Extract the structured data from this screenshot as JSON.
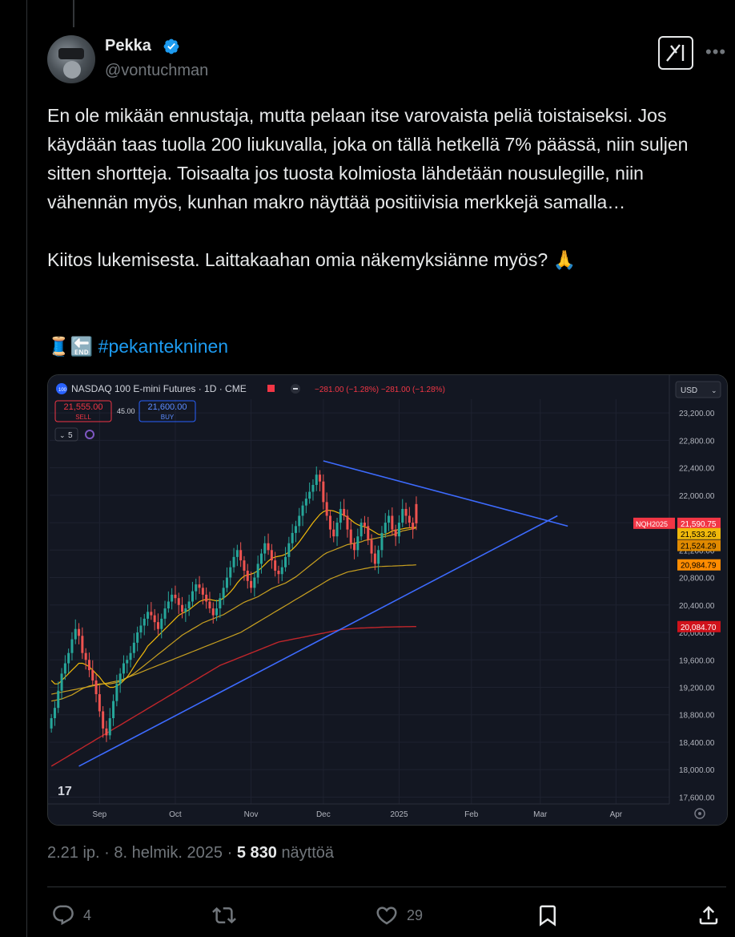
{
  "author": {
    "name": "Pekka",
    "handle": "@vontuchman"
  },
  "tweet": {
    "paragraphs": [
      "En ole mikään ennustaja, mutta pelaan itse varovaista peliä toistaiseksi. Jos käydään taas tuolla 200 liukuvalla, joka on tällä hetkellä 7% päässä, niin suljen sitten shortteja. Toisaalta jos tuosta kolmiosta lähdetään nousulegille, niin vähennän myös, kunhan makro näyttää positiivisia merkkejä samalla…",
      "Kiitos lukemisesta. Laittakaahan omia näkemyksiänne myös? 🙏"
    ],
    "emoji_prefix": "🧵🔚",
    "hashtag": "#pekantekninen"
  },
  "meta": {
    "time": "2.21 ip.",
    "date": "8. helmik. 2025",
    "views": "5 830",
    "views_label": "näyttöä"
  },
  "actions": {
    "replies": "4",
    "likes": "29"
  },
  "icons": [
    "verified-badge-icon",
    "grok-icon",
    "more-icon",
    "reply-icon",
    "retweet-icon",
    "like-icon",
    "bookmark-icon",
    "share-icon"
  ],
  "chart": {
    "symbol": "NASDAQ 100 E-mini Futures · 1D · CME",
    "change": "−281.00 (−1.28%)  −281.00 (−1.28%)",
    "sell_price": "21,555.00",
    "sell_label": "SELL",
    "spread": "45.00",
    "buy_price": "21,600.00",
    "buy_label": "BUY",
    "indicator_count": "5",
    "currency": "USD",
    "ticker_tag": "NQH2025",
    "price_labels": [
      "21,590.75",
      "21,533.26",
      "21,524.29",
      "20,984.79",
      "20,084.70"
    ],
    "logo": "17"
  },
  "chart_data": {
    "type": "candlestick",
    "y_ticks": [
      23200,
      22800,
      22400,
      22000,
      21600,
      21200,
      20800,
      20400,
      20000,
      19600,
      19200,
      18800,
      18400,
      18000,
      17600
    ],
    "y_tick_labels": [
      "23,200.00",
      "22,800.00",
      "22,400.00",
      "22,000.00",
      "21,600.00",
      "21,200.00",
      "20,800.00",
      "20,400.00",
      "20,000.00",
      "19,600.00",
      "19,200.00",
      "18,800.00",
      "18,400.00",
      "18,000.00",
      "17,600.00"
    ],
    "ylim": [
      17500,
      23400
    ],
    "x_labels": [
      "Sep",
      "Oct",
      "Nov",
      "Dec",
      "2025",
      "Feb",
      "Mar",
      "Apr"
    ],
    "x_label_index": [
      14,
      36,
      58,
      79,
      101,
      122,
      142,
      164
    ],
    "x_total": 180,
    "closes": [
      18750,
      18900,
      19150,
      19400,
      19550,
      19700,
      19900,
      20050,
      19950,
      19700,
      19600,
      19450,
      19300,
      19100,
      18850,
      18600,
      18500,
      18750,
      19000,
      19250,
      19400,
      19550,
      19600,
      19700,
      19850,
      20000,
      20100,
      20200,
      20300,
      20250,
      20150,
      20050,
      20200,
      20350,
      20450,
      20550,
      20500,
      20400,
      20300,
      20350,
      20450,
      20600,
      20700,
      20650,
      20550,
      20450,
      20350,
      20250,
      20350,
      20500,
      20650,
      20800,
      20950,
      21100,
      21200,
      21050,
      20900,
      20750,
      20650,
      20800,
      21000,
      21150,
      21300,
      21200,
      21050,
      20900,
      20850,
      20950,
      21100,
      21300,
      21450,
      21550,
      21700,
      21850,
      21950,
      22050,
      22150,
      22300,
      22200,
      21900,
      21700,
      21500,
      21400,
      21600,
      21800,
      21700,
      21500,
      21300,
      21200,
      21400,
      21600,
      21550,
      21350,
      21150,
      21000,
      21200,
      21450,
      21600,
      21700,
      21500,
      21400,
      21600,
      21800,
      21700,
      21600,
      21500,
      21590
    ],
    "opens": [
      18600,
      18750,
      18900,
      19150,
      19400,
      19550,
      19700,
      19900,
      20050,
      19950,
      19700,
      19600,
      19450,
      19300,
      19100,
      18850,
      18600,
      18500,
      18750,
      19000,
      19250,
      19400,
      19550,
      19600,
      19700,
      19850,
      20000,
      20100,
      20200,
      20300,
      20250,
      20150,
      20050,
      20200,
      20350,
      20450,
      20550,
      20500,
      20400,
      20300,
      20350,
      20450,
      20600,
      20700,
      20650,
      20550,
      20450,
      20350,
      20250,
      20350,
      20500,
      20650,
      20800,
      20950,
      21100,
      21200,
      21050,
      20900,
      20750,
      20650,
      20800,
      21000,
      21150,
      21300,
      21200,
      21050,
      20900,
      20850,
      20950,
      21100,
      21300,
      21450,
      21550,
      21700,
      21850,
      21950,
      22050,
      22150,
      22300,
      22200,
      21900,
      21700,
      21500,
      21400,
      21600,
      21800,
      21700,
      21500,
      21300,
      21200,
      21400,
      21600,
      21550,
      21350,
      21150,
      21000,
      21200,
      21450,
      21600,
      21700,
      21500,
      21400,
      21600,
      21800,
      21700,
      21600,
      21871
    ],
    "ma_fast": [
      19300,
      19250,
      19250,
      19300,
      19350,
      19400,
      19450,
      19500,
      19550,
      19550,
      19530,
      19500,
      19450,
      19400,
      19350,
      19280,
      19230,
      19200,
      19200,
      19220,
      19250,
      19300,
      19350,
      19420,
      19500,
      19580,
      19650,
      19720,
      19800,
      19850,
      19900,
      19950,
      20000,
      20050,
      20100,
      20150,
      20200,
      20250,
      20280,
      20300,
      20330,
      20370,
      20410,
      20450,
      20470,
      20480,
      20480,
      20470,
      20460,
      20470,
      20500,
      20540,
      20590,
      20650,
      20720,
      20780,
      20820,
      20840,
      20850,
      20870,
      20900,
      20940,
      20990,
      21040,
      21080,
      21100,
      21110,
      21120,
      21140,
      21170,
      21210,
      21260,
      21320,
      21390,
      21460,
      21530,
      21600,
      21660,
      21720,
      21760,
      21780,
      21780,
      21770,
      21750,
      21730,
      21710,
      21680,
      21640,
      21600,
      21570,
      21550,
      21540,
      21520,
      21490,
      21460,
      21430,
      21420,
      21430,
      21450,
      21480,
      21490,
      21500,
      21510,
      21520,
      21525,
      21528,
      21533
    ],
    "ma_mid": [
      19000,
      19010,
      19020,
      19030,
      19050,
      19070,
      19090,
      19120,
      19150,
      19180,
      19200,
      19220,
      19230,
      19240,
      19250,
      19250,
      19250,
      19250,
      19260,
      19270,
      19290,
      19310,
      19340,
      19370,
      19400,
      19440,
      19480,
      19520,
      19560,
      19600,
      19640,
      19680,
      19720,
      19760,
      19800,
      19840,
      19880,
      19920,
      19960,
      19990,
      20020,
      20050,
      20080,
      20110,
      20140,
      20160,
      20180,
      20200,
      20220,
      20240,
      20260,
      20290,
      20320,
      20350,
      20380,
      20410,
      20440,
      20460,
      20480,
      20500,
      20520,
      20550,
      20580,
      20610,
      20640,
      20660,
      20680,
      20700,
      20720,
      20750,
      20780,
      20810,
      20850,
      20890,
      20930,
      20970,
      21010,
      21050,
      21090,
      21130,
      21160,
      21180,
      21200,
      21220,
      21240,
      21260,
      21280,
      21290,
      21300,
      21310,
      21320,
      21340,
      21350,
      21360,
      21370,
      21380,
      21390,
      21400,
      21410,
      21420,
      21440,
      21460,
      21480,
      21490,
      21500,
      21510,
      21524
    ],
    "ma_slow": [
      19100,
      19110,
      19120,
      19130,
      19140,
      19150,
      19160,
      19170,
      19180,
      19190,
      19200,
      19210,
      19220,
      19230,
      19240,
      19250,
      19260,
      19270,
      19280,
      19290,
      19300,
      19320,
      19340,
      19360,
      19380,
      19400,
      19420,
      19440,
      19460,
      19480,
      19500,
      19520,
      19540,
      19560,
      19580,
      19600,
      19620,
      19640,
      19660,
      19680,
      19700,
      19720,
      19740,
      19760,
      19780,
      19800,
      19820,
      19840,
      19860,
      19880,
      19900,
      19920,
      19940,
      19960,
      19980,
      20000,
      20030,
      20060,
      20090,
      20120,
      20150,
      20180,
      20210,
      20240,
      20270,
      20300,
      20330,
      20360,
      20390,
      20420,
      20450,
      20480,
      20510,
      20540,
      20570,
      20600,
      20630,
      20660,
      20690,
      20720,
      20750,
      20780,
      20800,
      20820,
      20840,
      20860,
      20880,
      20890,
      20900,
      20910,
      20920,
      20930,
      20940,
      20950,
      20955,
      20960,
      20962,
      20964,
      20966,
      20968,
      20970,
      20972,
      20975,
      20978,
      20980,
      20982,
      20985
    ],
    "ma_200": [
      18050,
      18080,
      18110,
      18140,
      18170,
      18200,
      18230,
      18260,
      18290,
      18320,
      18350,
      18380,
      18410,
      18440,
      18470,
      18500,
      18530,
      18560,
      18590,
      18620,
      18650,
      18680,
      18710,
      18740,
      18770,
      18800,
      18830,
      18860,
      18890,
      18920,
      18950,
      18980,
      19010,
      19040,
      19070,
      19100,
      19130,
      19160,
      19190,
      19220,
      19250,
      19280,
      19310,
      19340,
      19370,
      19400,
      19430,
      19460,
      19490,
      19520,
      19540,
      19560,
      19580,
      19600,
      19620,
      19640,
      19660,
      19680,
      19700,
      19720,
      19740,
      19760,
      19780,
      19800,
      19820,
      19840,
      19860,
      19870,
      19880,
      19890,
      19900,
      19910,
      19920,
      19930,
      19940,
      19950,
      19960,
      19970,
      19980,
      19990,
      20000,
      20010,
      20020,
      20030,
      20040,
      20045,
      20050,
      20055,
      20060,
      20062,
      20064,
      20066,
      20068,
      20070,
      20072,
      20074,
      20076,
      20078,
      20079,
      20080,
      20081,
      20082,
      20083,
      20084,
      20084,
      20085,
      20085
    ],
    "trendlines": [
      {
        "name": "resistance",
        "x": [
          79,
          150
        ],
        "y": [
          22500,
          21550
        ]
      },
      {
        "name": "support",
        "x": [
          8,
          147
        ],
        "y": [
          18050,
          21700
        ]
      }
    ]
  },
  "colors": {
    "accent": "#1d9bf0",
    "up": "#26a69a",
    "down": "#ef5350",
    "ma_fast": "#f0b90b",
    "ma_mid": "#c8a020",
    "ma_200": "#c0262b",
    "trend": "#3d6bff"
  }
}
